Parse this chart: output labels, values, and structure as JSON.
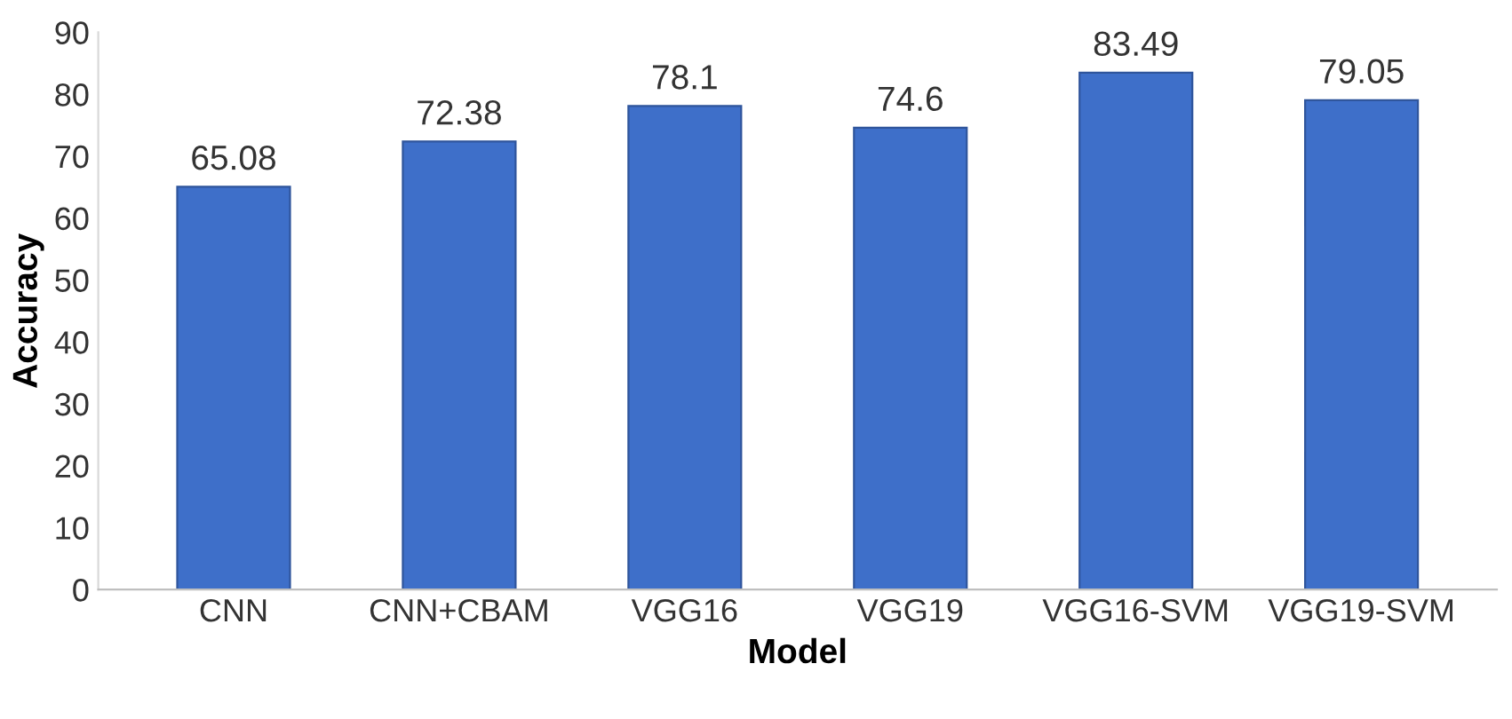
{
  "chart_data": {
    "type": "bar",
    "xlabel": "Model",
    "ylabel": "Accuracy",
    "categories": [
      "CNN",
      "CNN+CBAM",
      "VGG16",
      "VGG19",
      "VGG16-SVM",
      "VGG19-SVM"
    ],
    "values": [
      65.08,
      72.38,
      78.1,
      74.6,
      83.49,
      79.05
    ],
    "value_labels": [
      "65.08",
      "72.38",
      "78.1",
      "74.6",
      "83.49",
      "79.05"
    ],
    "color": "#3e6fc9",
    "ylim": [
      0,
      90
    ],
    "yticks": [
      0,
      10,
      20,
      30,
      40,
      50,
      60,
      70,
      80,
      90
    ],
    "grid": false,
    "legend": false
  }
}
